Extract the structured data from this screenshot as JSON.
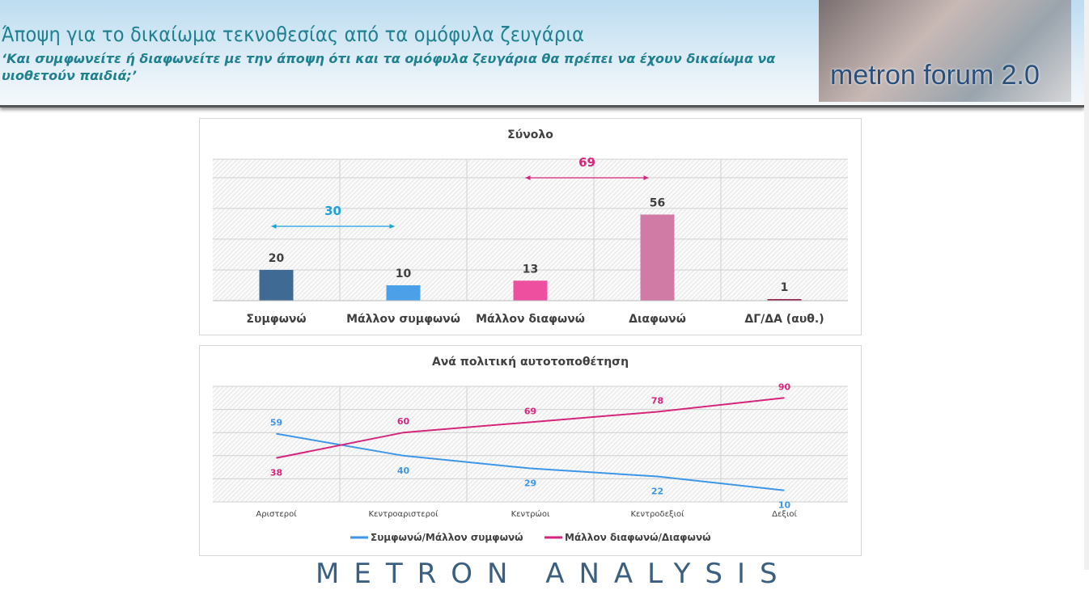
{
  "header": {
    "title": "Άποψη για το δικαίωμα τεκνοθεσίας από τα ομόφυλα ζευγάρια",
    "subtitle": "‘Και συμφωνείτε ή διαφωνείτε με την άποψη ότι και τα ομόφυλα ζευγάρια θα πρέπει να έχουν δικαίωμα να υιοθετούν παιδιά;’",
    "logo": "metron forum 2.0"
  },
  "footer": {
    "logo": "METRON ANALYSIS"
  },
  "chart_data": [
    {
      "type": "bar",
      "title": "Σύνολο",
      "categories": [
        "Συμφωνώ",
        "Μάλλον συμφωνώ",
        "Μάλλον διαφωνώ",
        "Διαφωνώ",
        "ΔΓ/ΔΑ (αυθ.)"
      ],
      "values": [
        20,
        10,
        13,
        56,
        1
      ],
      "colors": [
        "#3f6a93",
        "#4ca0e8",
        "#ee4f9e",
        "#d07aa6",
        "#8b1040"
      ],
      "ylim": [
        0,
        92
      ],
      "grid": true,
      "annotations": [
        {
          "label": "30",
          "from": "Συμφωνώ",
          "to": "Μάλλον συμφωνώ",
          "color": "#1aa3d9"
        },
        {
          "label": "69",
          "from": "Μάλλον διαφωνώ",
          "to": "Διαφωνώ",
          "color": "#d6257c"
        }
      ]
    },
    {
      "type": "line",
      "title": "Ανά πολιτική αυτοτοποθέτηση",
      "categories": [
        "Αριστεροί",
        "Κεντροαριστεροί",
        "Κεντρώοι",
        "Κεντροδεξιοί",
        "Δεξιοί"
      ],
      "ylim": [
        0,
        100
      ],
      "grid": true,
      "legend": "bottom",
      "series": [
        {
          "name": "Συμφωνώ/Μάλλον συμφωνώ",
          "values": [
            59,
            40,
            29,
            22,
            10
          ],
          "color": "#3d96e6"
        },
        {
          "name": "Μάλλον διαφωνώ/Διαφωνώ",
          "values": [
            38,
            60,
            69,
            78,
            90
          ],
          "color": "#d6257c"
        }
      ]
    }
  ]
}
